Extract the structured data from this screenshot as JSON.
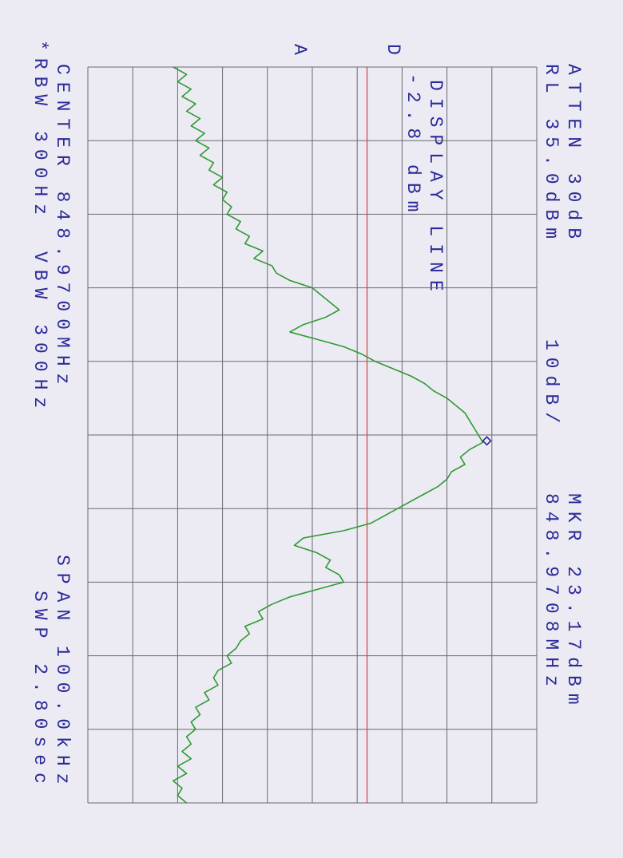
{
  "chart_data": {
    "type": "line",
    "labels": {
      "atten": "ATTEN 30dB",
      "ref_level": "RL 35.0dBm",
      "scale": "10dB/",
      "marker_level": "MKR 23.17dBm",
      "marker_freq": "848.9708MHz",
      "center": "CENTER 848.9700MHz",
      "span": "SPAN 100.0kHz",
      "rbw": "*RBW 300Hz",
      "vbw": "VBW 300Hz",
      "sweep": "SWP 2.80sec",
      "trace": "A",
      "display_marker": "D"
    },
    "display_line": {
      "title": "DISPLAY LINE",
      "label": "-2.8 dBm",
      "value": -2.8,
      "color": "#d24a4a"
    },
    "marker": {
      "x": 848.9708,
      "value": 23.17,
      "color": "#2a2a9a"
    },
    "xlim": [
      848.92,
      849.02
    ],
    "xticks": [
      848.92,
      848.93,
      848.94,
      848.95,
      848.96,
      848.97,
      848.98,
      848.99,
      849.0,
      849.01,
      849.02
    ],
    "ylim": [
      -65,
      35
    ],
    "yticks": [
      -65,
      -55,
      -45,
      -35,
      -25,
      -15,
      -5,
      5,
      15,
      25,
      35
    ],
    "grid": true,
    "color": "#2f9a32",
    "x": [
      848.92,
      848.921,
      848.922,
      848.923,
      848.924,
      848.925,
      848.926,
      848.927,
      848.928,
      848.929,
      848.93,
      848.931,
      848.932,
      848.933,
      848.934,
      848.935,
      848.936,
      848.937,
      848.938,
      848.939,
      848.94,
      848.941,
      848.942,
      848.943,
      848.944,
      848.945,
      848.946,
      848.947,
      848.948,
      848.949,
      848.95,
      848.951,
      848.952,
      848.953,
      848.954,
      848.955,
      848.956,
      848.957,
      848.958,
      848.959,
      848.96,
      848.961,
      848.962,
      848.963,
      848.964,
      848.965,
      848.966,
      848.967,
      848.968,
      848.969,
      848.97,
      848.971,
      848.972,
      848.973,
      848.974,
      848.975,
      848.976,
      848.977,
      848.978,
      848.979,
      848.98,
      848.981,
      848.982,
      848.983,
      848.984,
      848.985,
      848.986,
      848.987,
      848.988,
      848.989,
      848.99,
      848.991,
      848.992,
      848.993,
      848.994,
      848.995,
      848.996,
      848.997,
      848.998,
      848.999,
      849.0,
      849.001,
      849.002,
      849.003,
      849.004,
      849.005,
      849.006,
      849.007,
      849.008,
      849.009,
      849.01,
      849.011,
      849.012,
      849.013,
      849.014,
      849.015,
      849.016,
      849.017,
      849.018,
      849.019,
      849.02
    ],
    "values": [
      -46,
      -43,
      -45,
      -42,
      -44,
      -41,
      -43,
      -40,
      -42,
      -39,
      -41,
      -38,
      -40,
      -37,
      -38,
      -35,
      -37,
      -34,
      -35,
      -33,
      -34,
      -31,
      -32,
      -29,
      -30,
      -26,
      -28,
      -24,
      -23,
      -20,
      -15,
      -13,
      -11,
      -9,
      -12,
      -17,
      -20,
      -14,
      -8,
      -4,
      -1,
      3,
      7,
      10,
      12,
      15,
      17,
      19,
      20,
      21,
      22,
      23,
      20,
      18,
      19,
      16,
      15,
      13,
      10,
      7,
      4,
      1,
      -2,
      -8,
      -17,
      -19,
      -14,
      -11,
      -12,
      -9,
      -8,
      -14,
      -20,
      -24,
      -27,
      -26,
      -30,
      -29,
      -31,
      -32,
      -34,
      -33,
      -36,
      -37,
      -36,
      -39,
      -38,
      -41,
      -40,
      -42,
      -41,
      -43,
      -42,
      -44,
      -42,
      -45,
      -43,
      -46,
      -44,
      -45,
      -43
    ]
  }
}
